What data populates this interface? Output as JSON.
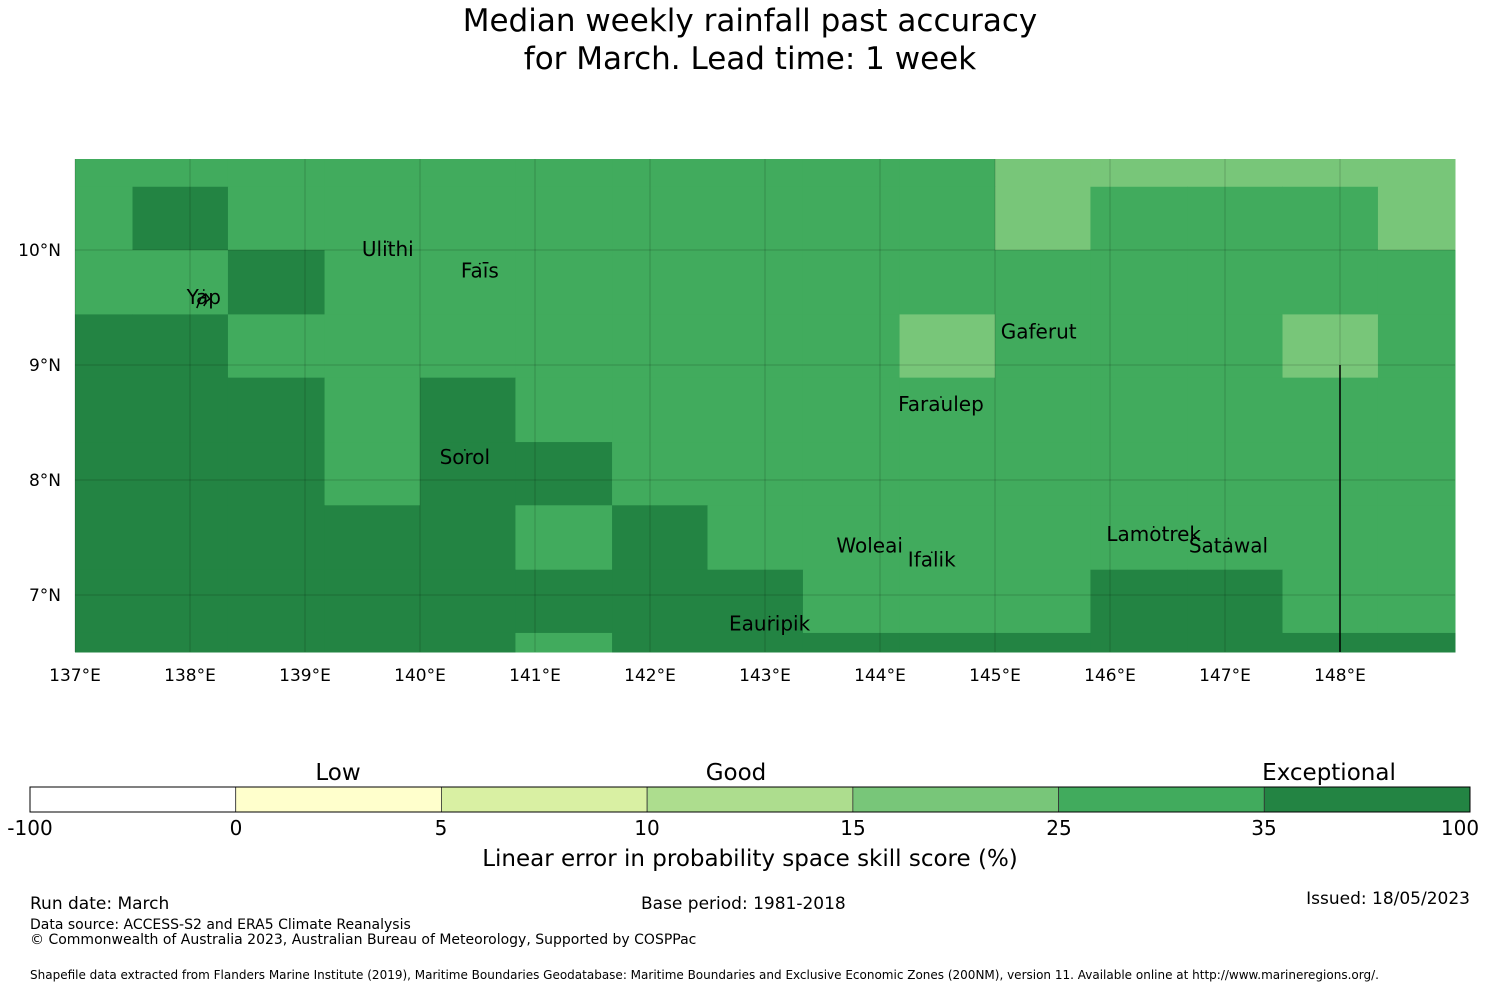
{
  "title": {
    "line1": "Median weekly rainfall past accuracy",
    "line2": "for March. Lead time: 1 week"
  },
  "colors": {
    "c_neg": "#ffffff",
    "c_0_5": "#ffffcc",
    "c_5_10": "#d9f0a3",
    "c_10_15": "#addd8e",
    "c_15_25": "#78c679",
    "c_25_35": "#41ab5d",
    "c_35_100": "#238443",
    "land": "#000000"
  },
  "chart_data": {
    "type": "heatmap",
    "title": "Median weekly rainfall past accuracy for March. Lead time: 1 week",
    "xlim": [
      137,
      149
    ],
    "ylim": [
      6.5,
      10.8
    ],
    "x_ticks": [
      137,
      138,
      139,
      140,
      141,
      142,
      143,
      144,
      145,
      146,
      147,
      148
    ],
    "y_ticks": [
      7,
      8,
      9,
      10
    ],
    "x_tick_labels": [
      "137°E",
      "138°E",
      "139°E",
      "140°E",
      "141°E",
      "142°E",
      "143°E",
      "144°E",
      "145°E",
      "146°E",
      "147°E",
      "148°E"
    ],
    "y_tick_labels": [
      "7°N",
      "8°N",
      "9°N",
      "10°N"
    ],
    "grid_lon_edges": [
      137.0,
      137.5,
      138.33,
      139.17,
      140.0,
      140.83,
      141.67,
      142.5,
      143.33,
      144.17,
      145.0,
      145.83,
      146.67,
      147.5,
      148.33,
      149.0
    ],
    "grid_lat_edges": [
      10.8,
      10.55,
      10.0,
      9.44,
      8.89,
      8.33,
      7.78,
      7.22,
      6.67,
      6.5
    ],
    "category_grid": [
      [
        5,
        5,
        5,
        5,
        5,
        5,
        5,
        5,
        5,
        5,
        4,
        4,
        4,
        4,
        4
      ],
      [
        5,
        6,
        5,
        5,
        5,
        5,
        5,
        5,
        5,
        5,
        4,
        5,
        5,
        5,
        4
      ],
      [
        5,
        5,
        6,
        5,
        5,
        5,
        5,
        5,
        5,
        5,
        5,
        5,
        5,
        5,
        5
      ],
      [
        6,
        6,
        5,
        5,
        5,
        5,
        5,
        5,
        5,
        4,
        5,
        5,
        5,
        4,
        5
      ],
      [
        6,
        6,
        6,
        5,
        6,
        5,
        5,
        5,
        5,
        5,
        5,
        5,
        5,
        5,
        5
      ],
      [
        6,
        6,
        6,
        5,
        6,
        6,
        5,
        5,
        5,
        5,
        5,
        5,
        5,
        5,
        5
      ],
      [
        6,
        6,
        6,
        6,
        6,
        5,
        6,
        5,
        5,
        5,
        5,
        5,
        5,
        5,
        5
      ],
      [
        6,
        6,
        6,
        6,
        6,
        6,
        6,
        6,
        5,
        5,
        5,
        6,
        6,
        5,
        5
      ],
      [
        6,
        6,
        6,
        6,
        6,
        5,
        6,
        6,
        6,
        6,
        6,
        6,
        6,
        6,
        6
      ]
    ],
    "boundary_line": {
      "lon": 148.0,
      "lat_from": 6.5,
      "lat_to": 9.0
    },
    "places": [
      {
        "name": "Ulithi",
        "lon": 139.72,
        "lat": 9.95
      },
      {
        "name": "Faīs",
        "lon": 140.52,
        "lat": 9.76
      },
      {
        "name": "Yap",
        "lon": 138.12,
        "lat": 9.53
      },
      {
        "name": "Gaferut",
        "lon": 145.38,
        "lat": 9.23
      },
      {
        "name": "Faraulep",
        "lon": 144.53,
        "lat": 8.6
      },
      {
        "name": "Sorol",
        "lon": 140.39,
        "lat": 8.14
      },
      {
        "name": "Woleai",
        "lon": 143.91,
        "lat": 7.37
      },
      {
        "name": "Ifalik",
        "lon": 144.45,
        "lat": 7.25
      },
      {
        "name": "Lamotrek",
        "lon": 146.38,
        "lat": 7.47
      },
      {
        "name": "Satawal",
        "lon": 147.03,
        "lat": 7.37
      },
      {
        "name": "Eauripik",
        "lon": 143.04,
        "lat": 6.69
      }
    ],
    "legend": {
      "xlabel": "Linear error in probability space skill score (%)",
      "ticks": [
        "-100",
        "0",
        "5",
        "10",
        "15",
        "25",
        "35",
        "100"
      ],
      "bounds": [
        -100,
        0,
        5,
        10,
        15,
        25,
        35,
        100
      ],
      "categories": [
        "Low",
        "Good",
        "Exceptional"
      ]
    }
  },
  "footer": {
    "run_date": "Run date: March",
    "base_period": "Base period: 1981-2018",
    "issued": "Issued: 18/05/2023",
    "data_source": "Data source: ACCESS-S2 and ERA5 Climate Reanalysis",
    "copyright": "© Commonwealth of Australia 2023, Australian Bureau of Meteorology, Supported by COSPPac",
    "shapefile": "Shapefile data extracted from Flanders Marine Institute (2019), Maritime Boundaries Geodatabase: Maritime Boundaries and Exclusive Economic Zones (200NM), version 11. Available online at http://www.marineregions.org/."
  }
}
